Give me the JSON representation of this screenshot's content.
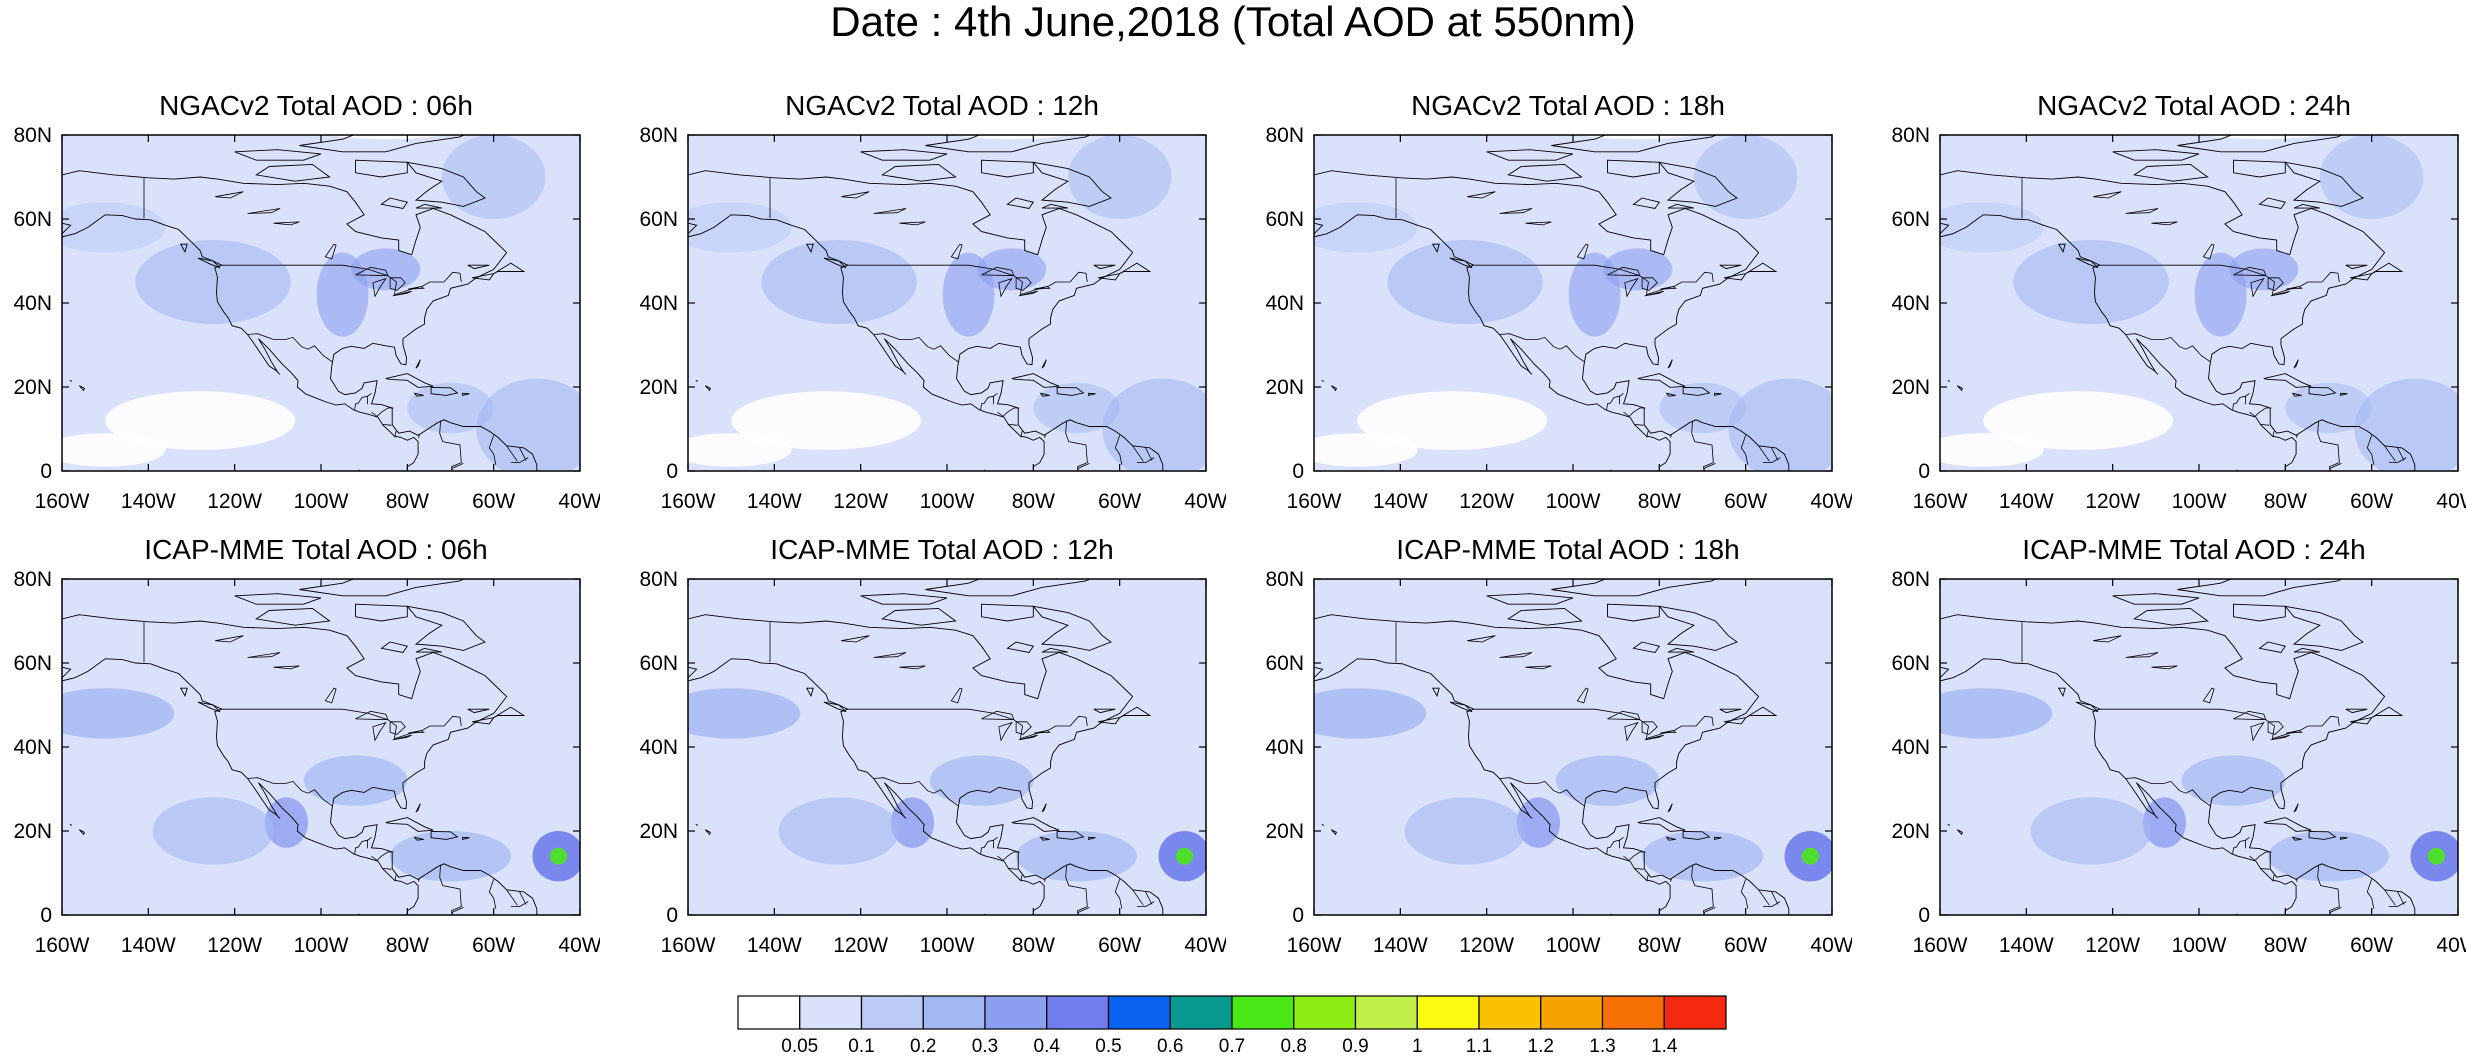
{
  "title": "Date : 4th June,2018 (Total AOD at 550nm)",
  "axes": {
    "lon_ticks": [
      "160W",
      "140W",
      "120W",
      "100W",
      "80W",
      "60W",
      "40W"
    ],
    "lat_ticks": [
      "80N",
      "60N",
      "40N",
      "20N",
      "0"
    ]
  },
  "panels": [
    {
      "title": "NGACv2 Total AOD : 06h",
      "model": "NGACv2",
      "hour": "06h"
    },
    {
      "title": "NGACv2 Total AOD : 12h",
      "model": "NGACv2",
      "hour": "12h"
    },
    {
      "title": "NGACv2 Total AOD : 18h",
      "model": "NGACv2",
      "hour": "18h"
    },
    {
      "title": "NGACv2 Total AOD : 24h",
      "model": "NGACv2",
      "hour": "24h"
    },
    {
      "title": "ICAP-MME Total AOD : 06h",
      "model": "ICAP-MME",
      "hour": "06h"
    },
    {
      "title": "ICAP-MME Total AOD : 12h",
      "model": "ICAP-MME",
      "hour": "12h"
    },
    {
      "title": "ICAP-MME Total AOD : 18h",
      "model": "ICAP-MME",
      "hour": "18h"
    },
    {
      "title": "ICAP-MME Total AOD : 24h",
      "model": "ICAP-MME",
      "hour": "24h"
    }
  ],
  "colorbar": {
    "labels": [
      "0.05",
      "0.1",
      "0.2",
      "0.3",
      "0.4",
      "0.5",
      "0.6",
      "0.7",
      "0.8",
      "0.9",
      "1",
      "1.1",
      "1.2",
      "1.3",
      "1.4"
    ],
    "colors": [
      "#ffffff",
      "#d9e1fb",
      "#bccbf6",
      "#a3b8f2",
      "#8c9ef0",
      "#6f7eec",
      "#0a62f0",
      "#08998f",
      "#4be818",
      "#8ced13",
      "#c2f04a",
      "#fcfc10",
      "#fac100",
      "#f5a300",
      "#f57000",
      "#f52a10"
    ]
  }
}
